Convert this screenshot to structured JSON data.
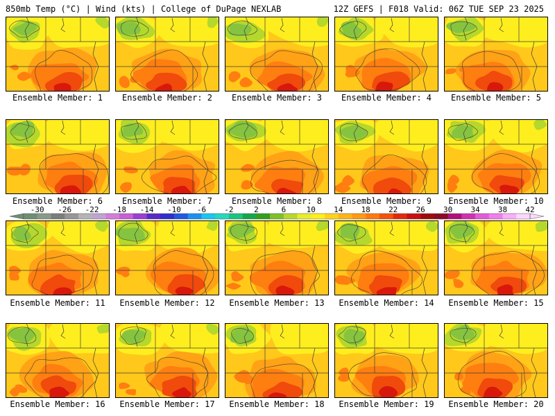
{
  "header": {
    "left": "850mb Temp (°C) | Wind (kts) | College of DuPage NEXLAB",
    "right": "12Z GEFS | F018 Valid: 06Z TUE SEP 23 2025"
  },
  "panels": [
    {
      "label": "Ensemble Member: 1"
    },
    {
      "label": "Ensemble Member: 2"
    },
    {
      "label": "Ensemble Member: 3"
    },
    {
      "label": "Ensemble Member: 4"
    },
    {
      "label": "Ensemble Member: 5"
    },
    {
      "label": "Ensemble Member: 6"
    },
    {
      "label": "Ensemble Member: 7"
    },
    {
      "label": "Ensemble Member: 8"
    },
    {
      "label": "Ensemble Member: 9"
    },
    {
      "label": "Ensemble Member: 10"
    },
    {
      "label": "Ensemble Member: 11"
    },
    {
      "label": "Ensemble Member: 12"
    },
    {
      "label": "Ensemble Member: 13"
    },
    {
      "label": "Ensemble Member: 14"
    },
    {
      "label": "Ensemble Member: 15"
    },
    {
      "label": "Ensemble Member: 16"
    },
    {
      "label": "Ensemble Member: 17"
    },
    {
      "label": "Ensemble Member: 18"
    },
    {
      "label": "Ensemble Member: 19"
    },
    {
      "label": "Ensemble Member: 20"
    }
  ],
  "colorbar": {
    "ticks": [
      "-30",
      "-26",
      "-22",
      "-18",
      "-14",
      "-10",
      "-6",
      "-2",
      "2",
      "6",
      "10",
      "14",
      "18",
      "22",
      "26",
      "30",
      "34",
      "38",
      "42"
    ],
    "min": -32,
    "step": 2,
    "colors": [
      "#6f8f73",
      "#889b89",
      "#7c7c7c",
      "#969696",
      "#b4b4b4",
      "#c0a3d4",
      "#d27ed8",
      "#c75fd8",
      "#9a3fd0",
      "#5a28c8",
      "#2f2fc9",
      "#2358e0",
      "#1c90f0",
      "#18c6f0",
      "#26d6c0",
      "#19c483",
      "#12a84a",
      "#339e1e",
      "#7ec02a",
      "#b8d830",
      "#e7ee2a",
      "#ffef1a",
      "#ffd21a",
      "#ffb418",
      "#ff9a12",
      "#ff7a0c",
      "#f4520a",
      "#e22a08",
      "#c81010",
      "#a00b0b",
      "#8a0a28",
      "#b0107a",
      "#d030b0",
      "#e45ad6",
      "#f27cf0",
      "#f8aef8",
      "#fcd8fc"
    ]
  },
  "map_colors": {
    "green": "#86c440",
    "lightgreen": "#b4d82c",
    "yellow": "#ffee1e",
    "lightorange": "#ffc81a",
    "orange": "#ffa216",
    "darkorange": "#ff7e10",
    "red": "#f04a0c",
    "darkred": "#d8180a",
    "lines": "#3c3c3c"
  }
}
